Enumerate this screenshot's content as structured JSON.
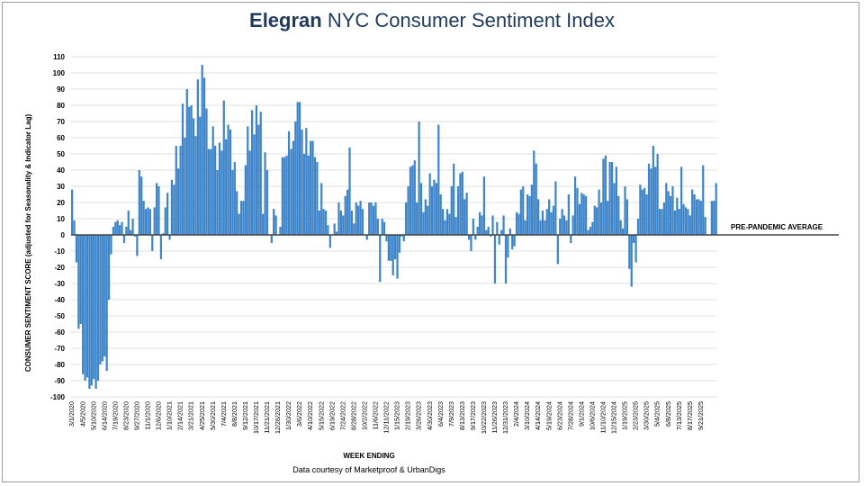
{
  "title": {
    "brand": "Elegran",
    "rest": " NYC Consumer Sentiment Index"
  },
  "caption": "Data courtesy of Marketproof & UrbanDigs",
  "colors": {
    "bar": "#3e84c8",
    "grid": "#d6d6d6",
    "axis": "#444444",
    "title": "#1f3a5c"
  },
  "chart_data": {
    "type": "bar",
    "title": "Elegran NYC Consumer Sentiment Index",
    "xlabel": "WEEK ENDING",
    "ylabel": "CONSUMER SENTIMENT SCORE (adjusted for Seasonality & Indicator Lag)",
    "ylim": [
      -100,
      110
    ],
    "yticks": [
      110,
      100,
      90,
      80,
      70,
      60,
      50,
      40,
      30,
      20,
      10,
      0,
      -10,
      -20,
      -30,
      -40,
      -50,
      -60,
      -70,
      -80,
      -90,
      -100
    ],
    "grid": true,
    "reference_line": {
      "value": 0,
      "label": "PRE-PANDEMIC AVERAGE"
    },
    "start_week": "3/1/2020",
    "end_week": "9/21/2025",
    "tick_labels": [
      "3/1/2020",
      "4/5/2020",
      "5/10/2020",
      "6/14/2020",
      "7/19/2020",
      "8/23/2020",
      "9/27/2020",
      "11/1/2020",
      "12/6/2020",
      "1/10/2021",
      "2/14/2021",
      "3/21/2021",
      "4/25/2021",
      "5/30/2021",
      "7/4/2021",
      "8/8/2021",
      "9/12/2021",
      "10/17/2021",
      "11/21/2021",
      "12/26/2021",
      "1/30/2022",
      "3/6/2022",
      "4/10/2022",
      "5/15/2022",
      "6/19/2022",
      "7/24/2022",
      "8/28/2022",
      "10/2/2022",
      "11/6/2022",
      "12/11/2022",
      "1/15/2023",
      "2/19/2023",
      "3/26/2023",
      "4/30/2023",
      "6/4/2023",
      "7/9/2023",
      "8/13/2023",
      "9/17/2023",
      "10/22/2023",
      "11/26/2023",
      "12/31/2023",
      "2/4/2024",
      "3/10/2024",
      "4/14/2024",
      "5/19/2024",
      "6/23/2024",
      "7/28/2024",
      "9/1/2024",
      "10/6/2024",
      "11/10/2024",
      "12/15/2024",
      "1/19/2025",
      "2/23/2025",
      "3/30/2025",
      "5/4/2025",
      "6/8/2025",
      "7/13/2025",
      "8/17/2025",
      "9/21/2025"
    ],
    "values": [
      28,
      9,
      -17,
      -58,
      -55,
      -86,
      -90,
      -88,
      -95,
      -93,
      -89,
      -95,
      -90,
      -80,
      -78,
      -75,
      -84,
      -40,
      -12,
      5,
      8,
      9,
      6,
      8,
      -5,
      5,
      15,
      3,
      10,
      -1,
      -13,
      40,
      36,
      21,
      16,
      17,
      16,
      -10,
      17,
      32,
      30,
      -15,
      1,
      17,
      26,
      -3,
      34,
      31,
      55,
      41,
      55,
      81,
      60,
      90,
      79,
      80,
      72,
      61,
      96,
      73,
      105,
      97,
      78,
      53,
      53,
      67,
      55,
      40,
      57,
      52,
      83,
      59,
      68,
      65,
      40,
      45,
      27,
      13,
      21,
      21,
      43,
      67,
      52,
      77,
      62,
      80,
      68,
      76,
      13,
      51,
      40,
      0,
      -5,
      16,
      12,
      0,
      5,
      48,
      48,
      49,
      64,
      53,
      58,
      70,
      82,
      82,
      65,
      50,
      66,
      49,
      58,
      58,
      48,
      45,
      15,
      32,
      16,
      15,
      6,
      -8,
      0,
      7,
      2,
      20,
      15,
      12,
      24,
      28,
      54,
      15,
      7,
      20,
      18,
      21,
      16,
      0,
      -3,
      20,
      20,
      18,
      20,
      10,
      -29,
      10,
      8,
      -4,
      -16,
      -16,
      -25,
      -15,
      -27,
      -11,
      -1,
      -4,
      20,
      30,
      42,
      43,
      46,
      20,
      70,
      32,
      14,
      22,
      18,
      38,
      30,
      34,
      32,
      68,
      25,
      16,
      9,
      16,
      13,
      30,
      44,
      11,
      30,
      38,
      39,
      22,
      26,
      -3,
      -10,
      10,
      -3,
      5,
      14,
      12,
      36,
      3,
      5,
      -1,
      12,
      -30,
      8,
      -6,
      3,
      12,
      -30,
      -14,
      4,
      -9,
      -7,
      14,
      13,
      28,
      30,
      9,
      25,
      24,
      31,
      52,
      44,
      22,
      9,
      15,
      9,
      16,
      22,
      14,
      18,
      33,
      -18,
      10,
      16,
      12,
      9,
      25,
      -5,
      12,
      36,
      29,
      19,
      26,
      25,
      24,
      3,
      5,
      8,
      18,
      17,
      28,
      20,
      47,
      49,
      21,
      45,
      45,
      32,
      42,
      24,
      9,
      4,
      30,
      22,
      -21,
      -32,
      -5,
      -17,
      10,
      31,
      28,
      29,
      25,
      44,
      41,
      55,
      42,
      50,
      16,
      16,
      20,
      32,
      27,
      24,
      30,
      15,
      23,
      16,
      42,
      19,
      17,
      16,
      12,
      28,
      25,
      22,
      22,
      21,
      43,
      11,
      0,
      0,
      21,
      21,
      32
    ]
  }
}
